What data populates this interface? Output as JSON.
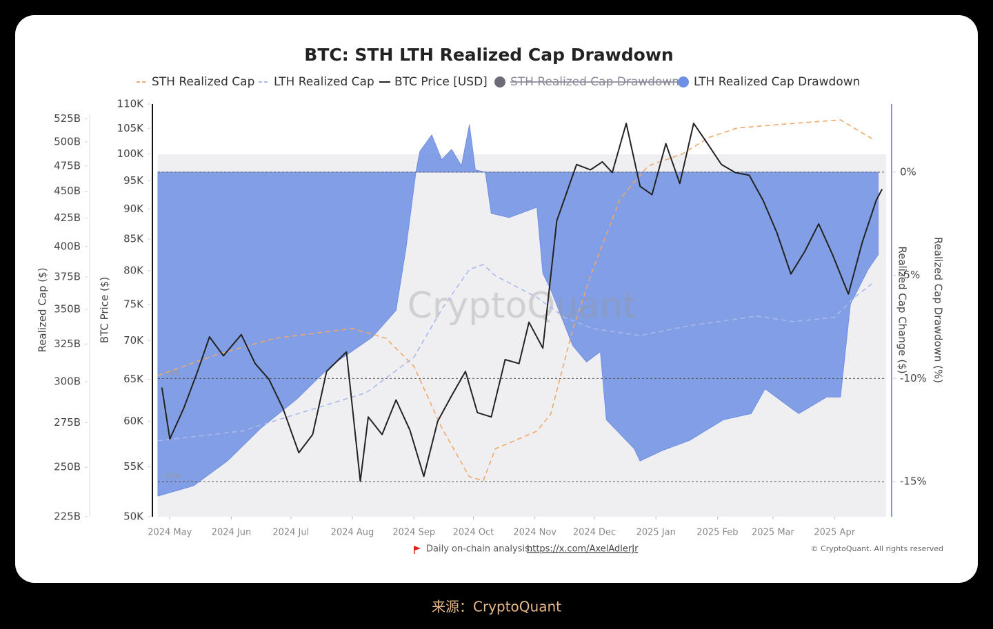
{
  "chart_data": {
    "type": "line",
    "title": "BTC: STH LTH Realized Cap Drawdown",
    "watermark": "CryptoQuant",
    "xlim": [
      "2024-04-25",
      "2025-04-27"
    ],
    "xticks": [
      {
        "value": "2024-05-01",
        "label": "2024 May"
      },
      {
        "value": "2024-06-01",
        "label": "2024 Jun"
      },
      {
        "value": "2024-07-01",
        "label": "2024 Jul"
      },
      {
        "value": "2024-08-01",
        "label": "2024 Aug"
      },
      {
        "value": "2024-09-01",
        "label": "2024 Sep"
      },
      {
        "value": "2024-10-01",
        "label": "2024 Oct"
      },
      {
        "value": "2024-11-01",
        "label": "2024 Nov"
      },
      {
        "value": "2024-12-01",
        "label": "2024 Dec"
      },
      {
        "value": "2025-01-01",
        "label": "2025 Jan"
      },
      {
        "value": "2025-02-01",
        "label": "2025 Feb"
      },
      {
        "value": "2025-03-01",
        "label": "2025 Mar"
      },
      {
        "value": "2025-04-01",
        "label": "2025 Apr"
      }
    ],
    "ylabel": "BTC Price ($)",
    "ylog": true,
    "ylim": [
      50,
      110
    ],
    "yticks": [
      {
        "value": 50,
        "label": "50K"
      },
      {
        "value": 55,
        "label": "55K"
      },
      {
        "value": 60,
        "label": "60K"
      },
      {
        "value": 65,
        "label": "65K"
      },
      {
        "value": 70,
        "label": "70K"
      },
      {
        "value": 75,
        "label": "75K"
      },
      {
        "value": 80,
        "label": "80K"
      },
      {
        "value": 85,
        "label": "85K"
      },
      {
        "value": 90,
        "label": "90K"
      },
      {
        "value": 95,
        "label": "95K"
      },
      {
        "value": 100,
        "label": "100K"
      },
      {
        "value": 105,
        "label": "105K"
      },
      {
        "value": 110,
        "label": "110K"
      }
    ],
    "y2label": "Realized Cap Drawdown (%)",
    "y2lim": [
      -16.7,
      3.3
    ],
    "y2ticks": [
      {
        "value": 0,
        "label": "0%"
      },
      {
        "value": -5,
        "label": "-5%"
      },
      {
        "value": -10,
        "label": "-10%"
      },
      {
        "value": -15,
        "label": "-15%"
      }
    ],
    "y3label": "Realized Cap ($)",
    "y3log": true,
    "y3lim": [
      225,
      542
    ],
    "y3ticks": [
      {
        "value": 225,
        "label": "225B"
      },
      {
        "value": 250,
        "label": "250B"
      },
      {
        "value": 275,
        "label": "275B"
      },
      {
        "value": 300,
        "label": "300B"
      },
      {
        "value": 325,
        "label": "325B"
      },
      {
        "value": 350,
        "label": "350B"
      },
      {
        "value": 375,
        "label": "375B"
      },
      {
        "value": 400,
        "label": "400B"
      },
      {
        "value": 425,
        "label": "425B"
      },
      {
        "value": 450,
        "label": "450B"
      },
      {
        "value": 475,
        "label": "475B"
      },
      {
        "value": 500,
        "label": "500B"
      },
      {
        "value": 525,
        "label": "525B"
      }
    ],
    "y4label": "Realized Cap Change ($)",
    "reference_lines": [
      {
        "value": 0
      },
      {
        "value": -10,
        "label": "-10%"
      },
      {
        "value": -15,
        "label": "-15%"
      }
    ],
    "series": [
      {
        "name": "STH Realized Cap",
        "color": "#f0a868",
        "axis": "y3",
        "style": "dashed",
        "x": [
          "2024-04-25",
          "2024-05-25",
          "2024-06-23",
          "2024-08-01",
          "2024-08-18",
          "2024-09-01",
          "2024-09-15",
          "2024-09-29",
          "2024-10-06",
          "2024-10-12",
          "2024-11-02",
          "2024-11-09",
          "2024-11-20",
          "2024-11-30",
          "2024-12-14",
          "2024-12-28",
          "2025-01-14",
          "2025-01-28",
          "2025-02-11",
          "2025-03-11",
          "2025-04-04",
          "2025-04-21"
        ],
        "values": [
          304,
          318,
          329,
          336,
          329,
          310,
          272,
          245,
          243,
          260,
          270,
          280,
          335,
          380,
          443,
          475,
          487,
          505,
          515,
          520,
          524,
          502
        ]
      },
      {
        "name": "LTH Realized Cap",
        "color": "#a9b9ec",
        "axis": "y3",
        "style": "dashed",
        "x": [
          "2024-04-25",
          "2024-06-06",
          "2024-07-04",
          "2024-08-08",
          "2024-09-01",
          "2024-09-15",
          "2024-09-29",
          "2024-10-06",
          "2024-10-12",
          "2024-11-02",
          "2024-11-16",
          "2024-11-30",
          "2024-12-24",
          "2025-01-18",
          "2025-02-21",
          "2025-03-11",
          "2025-04-01",
          "2025-04-11",
          "2025-04-21"
        ],
        "values": [
          264.5,
          270,
          280,
          293,
          316,
          350,
          381,
          385,
          376,
          359,
          344,
          336,
          331,
          338,
          345,
          341,
          344,
          359,
          371
        ]
      },
      {
        "name": "BTC Price [USD]",
        "color": "#222222",
        "axis": "y",
        "style": "solid",
        "x": [
          "2024-04-27",
          "2024-05-01",
          "2024-05-08",
          "2024-05-15",
          "2024-05-21",
          "2024-05-28",
          "2024-06-06",
          "2024-06-13",
          "2024-06-20",
          "2024-06-27",
          "2024-07-05",
          "2024-07-12",
          "2024-07-19",
          "2024-07-29",
          "2024-08-05",
          "2024-08-09",
          "2024-08-16",
          "2024-08-23",
          "2024-08-30",
          "2024-09-06",
          "2024-09-13",
          "2024-09-20",
          "2024-09-27",
          "2024-10-03",
          "2024-10-10",
          "2024-10-17",
          "2024-10-24",
          "2024-10-29",
          "2024-11-05",
          "2024-11-12",
          "2024-11-22",
          "2024-11-29",
          "2024-12-05",
          "2024-12-10",
          "2024-12-17",
          "2024-12-24",
          "2024-12-30",
          "2025-01-06",
          "2025-01-13",
          "2025-01-20",
          "2025-01-27",
          "2025-02-03",
          "2025-02-10",
          "2025-02-17",
          "2025-02-24",
          "2025-03-03",
          "2025-03-10",
          "2025-03-17",
          "2025-03-24",
          "2025-03-31",
          "2025-04-08",
          "2025-04-15",
          "2025-04-22",
          "2025-04-25"
        ],
        "values": [
          64.0,
          58.0,
          61.5,
          66.0,
          70.5,
          68.0,
          70.8,
          67.0,
          65.0,
          61.5,
          56.5,
          58.5,
          66.0,
          68.5,
          53.5,
          60.5,
          58.5,
          62.5,
          59.0,
          54.0,
          60.0,
          63.0,
          66.0,
          61.0,
          60.5,
          67.5,
          67.0,
          72.5,
          69.0,
          88.0,
          98.0,
          97.0,
          98.5,
          96.5,
          106.0,
          94.0,
          92.5,
          102.0,
          94.5,
          106.0,
          102.0,
          98.0,
          96.5,
          96.0,
          91.5,
          86.0,
          79.5,
          83.0,
          87.5,
          82.5,
          76.5,
          84.5,
          91.5,
          93.5
        ]
      },
      {
        "name": "STH Realized Cap Drawdown",
        "color": "#6b6b7a",
        "hidden": true
      },
      {
        "name": "LTH Realized Cap Drawdown",
        "color": "#6f8fe2",
        "axis": "y2",
        "style": "area",
        "x": [
          "2024-04-25",
          "2024-05-13",
          "2024-05-30",
          "2024-06-16",
          "2024-07-04",
          "2024-07-21",
          "2024-08-11",
          "2024-08-23",
          "2024-08-28",
          "2024-09-02",
          "2024-09-04",
          "2024-09-10",
          "2024-09-15",
          "2024-09-20",
          "2024-09-25",
          "2024-09-29",
          "2024-10-02",
          "2024-10-07",
          "2024-10-10",
          "2024-10-19",
          "2024-11-02",
          "2024-11-05",
          "2024-11-09",
          "2024-11-20",
          "2024-11-27",
          "2024-12-04",
          "2024-12-07",
          "2024-12-21",
          "2024-12-24",
          "2025-01-04",
          "2025-01-18",
          "2025-02-04",
          "2025-02-18",
          "2025-02-25",
          "2025-03-11",
          "2025-03-14",
          "2025-03-28",
          "2025-04-04",
          "2025-04-09",
          "2025-04-18",
          "2025-04-23"
        ],
        "values": [
          -15.7,
          -15.2,
          -14.0,
          -12.4,
          -11.0,
          -9.4,
          -8.0,
          -6.7,
          -3.7,
          0,
          1.0,
          1.8,
          0.6,
          1.1,
          0.3,
          2.3,
          0.1,
          0,
          -2.0,
          -2.2,
          -1.7,
          -4.9,
          -5.7,
          -8.4,
          -9.2,
          -8.7,
          -12.0,
          -13.4,
          -14.0,
          -13.5,
          -13.0,
          -12.0,
          -11.7,
          -10.5,
          -11.5,
          -11.7,
          -10.9,
          -10.9,
          -6.4,
          -4.7,
          -4.0
        ]
      }
    ],
    "footer": {
      "note": "Daily on-chain analysis:",
      "link": "https://x.com/AxelAdlerJr",
      "copyright": "© CryptoQuant. All rights reserved"
    }
  },
  "source": "来源：CryptoQuant"
}
